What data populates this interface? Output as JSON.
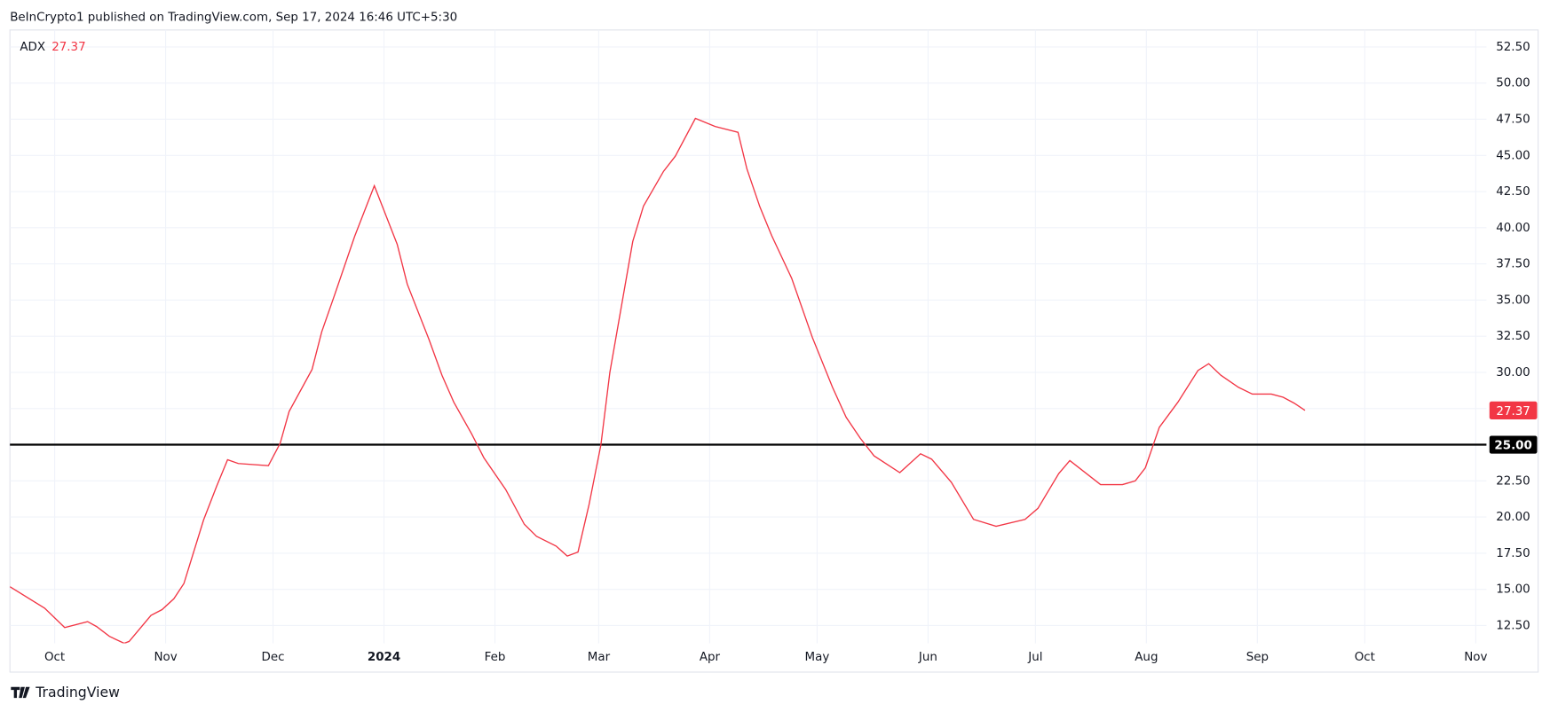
{
  "header": "BeInCrypto1 published on TradingView.com, Sep 17, 2024 16:46 UTC+5:30",
  "footer": "TradingView",
  "chart_data": {
    "type": "line",
    "legend_label": "ADX",
    "series": [
      {
        "name": "ADX",
        "color": "#f23645",
        "values": [
          15.18,
          13.7,
          12.36,
          12.77,
          12.43,
          11.75,
          11.27,
          11.4,
          13.2,
          13.6,
          14.35,
          15.4,
          19.8,
          22.1,
          23.96,
          23.7,
          23.55,
          25.1,
          27.3,
          30.2,
          32.8,
          35.35,
          39.4,
          42.9,
          38.85,
          36.1,
          32.26,
          29.8,
          27.94,
          25.74,
          24.1,
          21.9,
          19.5,
          18.67,
          17.99,
          17.3,
          17.58,
          20.87,
          24.99,
          30.0,
          39.05,
          41.5,
          43.9,
          44.95,
          47.56,
          47.0,
          46.6,
          44.06,
          41.45,
          39.46,
          36.5,
          32.4,
          28.97,
          26.9,
          25.47,
          24.23,
          23.07,
          24.37,
          24.0,
          22.4,
          19.84,
          19.36,
          19.84,
          20.6,
          23.0,
          23.9,
          22.24,
          22.24,
          22.5,
          23.4,
          26.2,
          27.94,
          30.13,
          30.6,
          29.8,
          28.97,
          28.5,
          28.5,
          28.28,
          27.87,
          27.37
        ]
      }
    ],
    "x": [
      -12.5,
      -2.8,
      2.8,
      9.2,
      11.7,
      15.3,
      19.4,
      20.8,
      26.9,
      30,
      33.3,
      36.1,
      41.6,
      45.2,
      48.3,
      51.3,
      59.7,
      63,
      65.5,
      71.9,
      74.6,
      78.2,
      83.8,
      89.3,
      95.7,
      98.5,
      104.6,
      108.2,
      111.5,
      116.5,
      119.9,
      126,
      131.2,
      134.6,
      140.1,
      143.2,
      146.2,
      149.3,
      152.6,
      155.1,
      161.5,
      164.5,
      170.1,
      173.4,
      179,
      184.5,
      190.9,
      193.4,
      197,
      200.3,
      205.9,
      211.7,
      217.3,
      221.1,
      225,
      228.9,
      236.1,
      241.9,
      245,
      250.5,
      256.7,
      263,
      271.1,
      274.7,
      280.5,
      283.6,
      292.2,
      298.3,
      301.9,
      304.7,
      308.6,
      313.8,
      319.4,
      322.4,
      325.8,
      330.7,
      334.6,
      339.9,
      343.2,
      346.3,
      349.3
    ],
    "xlim": [
      -12.5,
      400
    ],
    "xticks": [
      {
        "value": 0,
        "label": "Oct"
      },
      {
        "value": 31,
        "label": "Nov"
      },
      {
        "value": 61,
        "label": "Dec"
      },
      {
        "value": 92,
        "label": "2024"
      },
      {
        "value": 123,
        "label": "Feb"
      },
      {
        "value": 152,
        "label": "Mar"
      },
      {
        "value": 183,
        "label": "Apr"
      },
      {
        "value": 213,
        "label": "May"
      },
      {
        "value": 244,
        "label": "Jun"
      },
      {
        "value": 274,
        "label": "Jul"
      },
      {
        "value": 305,
        "label": "Aug"
      },
      {
        "value": 336,
        "label": "Sep"
      },
      {
        "value": 366,
        "label": "Oct"
      },
      {
        "value": 397,
        "label": "Nov"
      }
    ],
    "ylim": [
      11.27,
      53.67
    ],
    "yticks": [
      {
        "value": 12.5,
        "label": "12.50"
      },
      {
        "value": 15,
        "label": "15.00"
      },
      {
        "value": 17.5,
        "label": "17.50"
      },
      {
        "value": 20,
        "label": "20.00"
      },
      {
        "value": 22.5,
        "label": "22.50"
      },
      {
        "value": 25,
        "label": "25.00"
      },
      {
        "value": 27.5,
        "label": "27.50"
      },
      {
        "value": 30,
        "label": "30.00"
      },
      {
        "value": 32.5,
        "label": "32.50"
      },
      {
        "value": 35,
        "label": "35.00"
      },
      {
        "value": 37.5,
        "label": "37.50"
      },
      {
        "value": 40,
        "label": "40.00"
      },
      {
        "value": 42.5,
        "label": "42.50"
      },
      {
        "value": 45,
        "label": "45.00"
      },
      {
        "value": 47.5,
        "label": "47.50"
      },
      {
        "value": 50,
        "label": "50.00"
      },
      {
        "value": 52.5,
        "label": "52.50"
      }
    ],
    "hline": {
      "value": 25,
      "label": "25.00",
      "color": "#000000"
    },
    "grid": true
  }
}
